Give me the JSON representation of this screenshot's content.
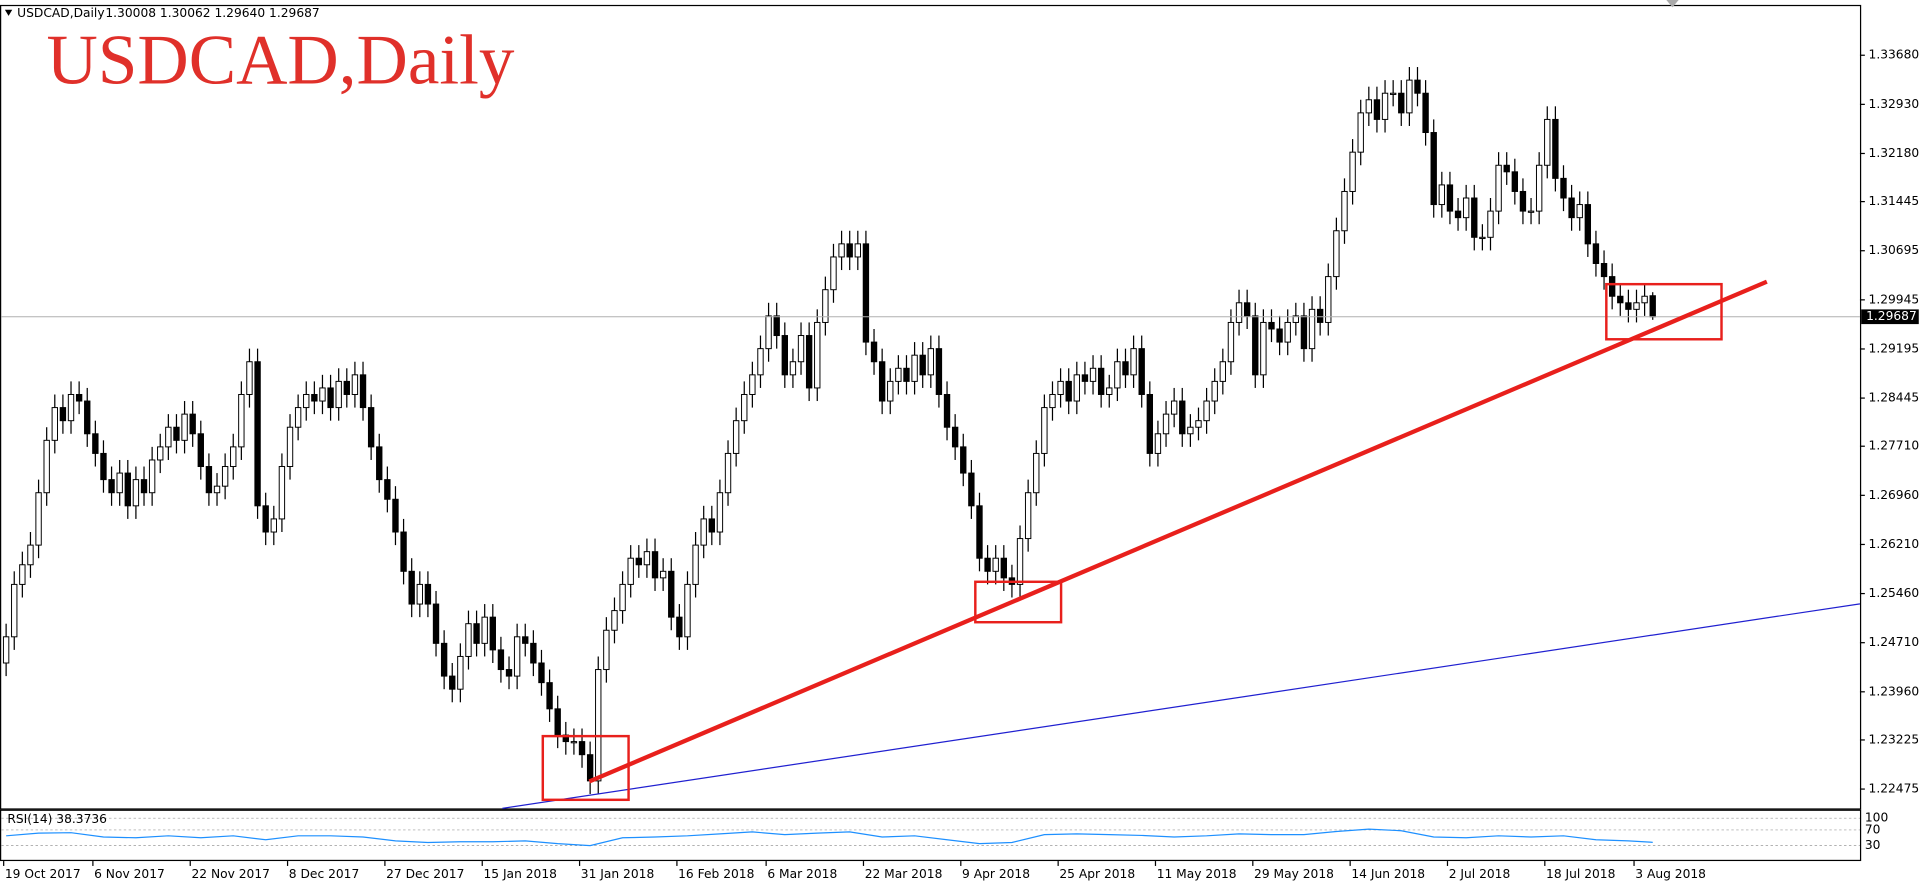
{
  "chart_data": {
    "type": "candlestick",
    "title": "USDCAD,Daily",
    "header_prices": "1.30008 1.30062 1.29640 1.29687",
    "up_color": "#ffffff",
    "down_color": "#000000",
    "ylim": [
      1.2218,
      1.3443
    ],
    "yticks": [
      {
        "value": 1.3368,
        "label": "1.33680"
      },
      {
        "value": 1.3293,
        "label": "1.32930"
      },
      {
        "value": 1.3218,
        "label": "1.32180"
      },
      1.31445,
      1.30695,
      1.29945,
      1.29195,
      1.28445,
      {
        "value": 1.2771,
        "label": "1.27710"
      },
      {
        "value": 1.2696,
        "label": "1.26960"
      },
      {
        "value": 1.2621,
        "label": "1.26210"
      },
      {
        "value": 1.2546,
        "label": "1.25460"
      },
      {
        "value": 1.2471,
        "label": "1.24710"
      },
      {
        "value": 1.2396,
        "label": "1.23960"
      },
      1.23225,
      1.22475
    ],
    "xticks": [
      {
        "value": 0,
        "label": "19 Oct 2017"
      },
      {
        "value": 11,
        "label": "6 Nov 2017"
      },
      {
        "value": 23,
        "label": "22 Nov 2017"
      },
      {
        "value": 35,
        "label": "8 Dec 2017"
      },
      {
        "value": 47,
        "label": "27 Dec 2017"
      },
      {
        "value": 59,
        "label": "15 Jan 2018"
      },
      {
        "value": 71,
        "label": "31 Jan 2018"
      },
      {
        "value": 83,
        "label": "16 Feb 2018"
      },
      {
        "value": 94,
        "label": "6 Mar 2018"
      },
      {
        "value": 106,
        "label": "22 Mar 2018"
      },
      {
        "value": 118,
        "label": "9 Apr 2018"
      },
      {
        "value": 130,
        "label": "25 Apr 2018"
      },
      {
        "value": 142,
        "label": "11 May 2018"
      },
      {
        "value": 154,
        "label": "29 May 2018"
      },
      {
        "value": 166,
        "label": "14 Jun 2018"
      },
      {
        "value": 178,
        "label": "2 Jul 2018"
      },
      {
        "value": 190,
        "label": "18 Jul 2018"
      },
      {
        "value": 201,
        "label": "3 Aug 2018"
      }
    ],
    "last_price": {
      "value": 1.29687,
      "label": "1.29687"
    },
    "open": [
      1.244,
      1.248,
      1.256,
      1.259,
      1.262,
      1.27,
      1.278,
      1.283,
      1.281,
      1.285,
      1.284,
      1.279,
      1.276,
      1.272,
      1.27,
      1.273,
      1.268,
      1.272,
      1.27,
      1.275,
      1.277,
      1.28,
      1.278,
      1.282,
      1.279,
      1.274,
      1.27,
      1.271,
      1.274,
      1.277,
      1.285,
      1.29,
      1.268,
      1.264,
      1.266,
      1.274,
      1.28,
      1.283,
      1.285,
      1.284,
      1.286,
      1.283,
      1.287,
      1.285,
      1.288,
      1.283,
      1.277,
      1.272,
      1.269,
      1.264,
      1.258,
      1.253,
      1.256,
      1.253,
      1.247,
      1.242,
      1.24,
      1.245,
      1.25,
      1.247,
      1.251,
      1.246,
      1.243,
      1.242,
      1.248,
      1.247,
      1.244,
      1.241,
      1.237,
      1.233,
      1.232,
      1.232,
      1.23,
      1.226,
      1.243,
      1.249,
      1.252,
      1.256,
      1.26,
      1.259,
      1.261,
      1.257,
      1.258,
      1.251,
      1.248,
      1.256,
      1.262,
      1.266,
      1.264,
      1.27,
      1.276,
      1.281,
      1.285,
      1.288,
      1.292,
      1.297,
      1.294,
      1.288,
      1.29,
      1.294,
      1.286,
      1.296,
      1.301,
      1.306,
      1.308,
      1.306,
      1.308,
      1.293,
      1.29,
      1.284,
      1.287,
      1.289,
      1.287,
      1.291,
      1.288,
      1.292,
      1.285,
      1.28,
      1.277,
      1.273,
      1.268,
      1.26,
      1.258,
      1.26,
      1.257,
      1.256,
      1.263,
      1.27,
      1.276,
      1.283,
      1.285,
      1.287,
      1.284,
      1.288,
      1.287,
      1.289,
      1.285,
      1.286,
      1.29,
      1.288,
      1.292,
      1.285,
      1.276,
      1.279,
      1.282,
      1.284,
      1.279,
      1.28,
      1.281,
      1.284,
      1.287,
      1.29,
      1.296,
      1.299,
      1.297,
      1.288,
      1.296,
      1.295,
      1.293,
      1.296,
      1.297,
      1.292,
      1.298,
      1.296,
      1.303,
      1.31,
      1.316,
      1.322,
      1.328,
      1.33,
      1.327,
      1.331,
      1.331,
      1.328,
      1.333,
      1.331,
      1.325,
      1.314,
      1.317,
      1.313,
      1.312,
      1.315,
      1.309,
      1.309,
      1.313,
      1.32,
      1.319,
      1.316,
      1.313,
      1.313,
      1.32,
      1.327,
      1.318,
      1.315,
      1.312,
      1.314,
      1.308,
      1.305,
      1.303,
      1.3,
      1.299,
      1.298,
      1.299,
      1.30008
    ],
    "high": [
      1.25,
      1.258,
      1.261,
      1.264,
      1.272,
      1.28,
      1.285,
      1.285,
      1.287,
      1.287,
      1.286,
      1.281,
      1.278,
      1.274,
      1.275,
      1.275,
      1.274,
      1.274,
      1.277,
      1.279,
      1.282,
      1.282,
      1.284,
      1.284,
      1.281,
      1.276,
      1.273,
      1.276,
      1.279,
      1.287,
      1.292,
      1.292,
      1.27,
      1.268,
      1.276,
      1.282,
      1.285,
      1.287,
      1.287,
      1.288,
      1.288,
      1.289,
      1.289,
      1.29,
      1.29,
      1.285,
      1.279,
      1.274,
      1.271,
      1.266,
      1.26,
      1.258,
      1.258,
      1.255,
      1.249,
      1.244,
      1.247,
      1.252,
      1.252,
      1.253,
      1.253,
      1.248,
      1.245,
      1.25,
      1.25,
      1.249,
      1.246,
      1.243,
      1.239,
      1.235,
      1.234,
      1.234,
      1.232,
      1.245,
      1.251,
      1.254,
      1.258,
      1.262,
      1.262,
      1.263,
      1.263,
      1.26,
      1.26,
      1.253,
      1.258,
      1.264,
      1.268,
      1.268,
      1.272,
      1.278,
      1.283,
      1.287,
      1.29,
      1.294,
      1.299,
      1.299,
      1.296,
      1.292,
      1.296,
      1.296,
      1.298,
      1.303,
      1.308,
      1.31,
      1.31,
      1.31,
      1.31,
      1.295,
      1.292,
      1.289,
      1.291,
      1.291,
      1.293,
      1.293,
      1.294,
      1.294,
      1.287,
      1.282,
      1.279,
      1.275,
      1.27,
      1.262,
      1.262,
      1.262,
      1.259,
      1.265,
      1.272,
      1.278,
      1.285,
      1.287,
      1.289,
      1.289,
      1.29,
      1.29,
      1.291,
      1.291,
      1.288,
      1.292,
      1.292,
      1.294,
      1.294,
      1.287,
      1.281,
      1.284,
      1.286,
      1.286,
      1.282,
      1.283,
      1.286,
      1.289,
      1.292,
      1.298,
      1.301,
      1.301,
      1.299,
      1.298,
      1.298,
      1.297,
      1.298,
      1.299,
      1.299,
      1.3,
      1.3,
      1.305,
      1.312,
      1.318,
      1.324,
      1.33,
      1.332,
      1.332,
      1.333,
      1.333,
      1.333,
      1.335,
      1.335,
      1.333,
      1.327,
      1.319,
      1.319,
      1.315,
      1.317,
      1.317,
      1.311,
      1.315,
      1.322,
      1.322,
      1.321,
      1.318,
      1.315,
      1.322,
      1.329,
      1.329,
      1.32,
      1.317,
      1.316,
      1.316,
      1.31,
      1.307,
      1.305,
      1.302,
      1.301,
      1.301,
      1.302,
      1.30062
    ],
    "low": [
      1.242,
      1.246,
      1.254,
      1.257,
      1.26,
      1.268,
      1.276,
      1.279,
      1.279,
      1.282,
      1.277,
      1.274,
      1.27,
      1.268,
      1.268,
      1.266,
      1.266,
      1.268,
      1.268,
      1.273,
      1.275,
      1.276,
      1.276,
      1.277,
      1.272,
      1.268,
      1.268,
      1.269,
      1.272,
      1.275,
      1.283,
      1.266,
      1.262,
      1.262,
      1.264,
      1.272,
      1.278,
      1.281,
      1.282,
      1.282,
      1.281,
      1.281,
      1.283,
      1.283,
      1.281,
      1.275,
      1.27,
      1.267,
      1.262,
      1.256,
      1.251,
      1.251,
      1.251,
      1.245,
      1.24,
      1.238,
      1.238,
      1.243,
      1.245,
      1.245,
      1.244,
      1.241,
      1.24,
      1.24,
      1.245,
      1.242,
      1.239,
      1.235,
      1.231,
      1.23,
      1.23,
      1.228,
      1.224,
      1.224,
      1.241,
      1.247,
      1.25,
      1.254,
      1.257,
      1.257,
      1.255,
      1.255,
      1.249,
      1.246,
      1.246,
      1.254,
      1.26,
      1.262,
      1.262,
      1.268,
      1.274,
      1.279,
      1.283,
      1.286,
      1.29,
      1.292,
      1.286,
      1.286,
      1.288,
      1.284,
      1.284,
      1.294,
      1.299,
      1.304,
      1.304,
      1.304,
      1.291,
      1.288,
      1.282,
      1.282,
      1.285,
      1.285,
      1.285,
      1.286,
      1.286,
      1.283,
      1.278,
      1.275,
      1.271,
      1.266,
      1.258,
      1.256,
      1.256,
      1.255,
      1.254,
      1.254,
      1.261,
      1.268,
      1.274,
      1.281,
      1.283,
      1.282,
      1.282,
      1.285,
      1.285,
      1.283,
      1.283,
      1.284,
      1.286,
      1.286,
      1.283,
      1.274,
      1.274,
      1.277,
      1.28,
      1.277,
      1.277,
      1.278,
      1.279,
      1.282,
      1.285,
      1.288,
      1.294,
      1.295,
      1.286,
      1.286,
      1.293,
      1.291,
      1.291,
      1.294,
      1.29,
      1.29,
      1.294,
      1.294,
      1.301,
      1.308,
      1.314,
      1.32,
      1.326,
      1.325,
      1.325,
      1.329,
      1.326,
      1.326,
      1.329,
      1.323,
      1.312,
      1.312,
      1.311,
      1.31,
      1.31,
      1.307,
      1.307,
      1.307,
      1.311,
      1.317,
      1.314,
      1.311,
      1.311,
      1.311,
      1.318,
      1.316,
      1.313,
      1.31,
      1.31,
      1.306,
      1.303,
      1.301,
      1.298,
      1.297,
      1.296,
      1.296,
      1.297,
      1.2964
    ],
    "close": [
      1.248,
      1.256,
      1.259,
      1.262,
      1.27,
      1.278,
      1.283,
      1.281,
      1.285,
      1.284,
      1.279,
      1.276,
      1.272,
      1.27,
      1.273,
      1.268,
      1.272,
      1.27,
      1.275,
      1.277,
      1.28,
      1.278,
      1.282,
      1.279,
      1.274,
      1.27,
      1.271,
      1.274,
      1.277,
      1.285,
      1.29,
      1.268,
      1.264,
      1.266,
      1.274,
      1.28,
      1.283,
      1.285,
      1.284,
      1.286,
      1.283,
      1.287,
      1.285,
      1.288,
      1.283,
      1.277,
      1.272,
      1.269,
      1.264,
      1.258,
      1.253,
      1.256,
      1.253,
      1.247,
      1.242,
      1.24,
      1.245,
      1.25,
      1.247,
      1.251,
      1.246,
      1.243,
      1.242,
      1.248,
      1.247,
      1.244,
      1.241,
      1.237,
      1.233,
      1.232,
      1.232,
      1.23,
      1.226,
      1.243,
      1.249,
      1.252,
      1.256,
      1.26,
      1.259,
      1.261,
      1.257,
      1.258,
      1.251,
      1.248,
      1.256,
      1.262,
      1.266,
      1.264,
      1.27,
      1.276,
      1.281,
      1.285,
      1.288,
      1.292,
      1.297,
      1.294,
      1.288,
      1.29,
      1.294,
      1.286,
      1.296,
      1.301,
      1.306,
      1.308,
      1.306,
      1.308,
      1.293,
      1.29,
      1.284,
      1.287,
      1.289,
      1.287,
      1.291,
      1.288,
      1.292,
      1.285,
      1.28,
      1.277,
      1.273,
      1.268,
      1.26,
      1.258,
      1.26,
      1.257,
      1.256,
      1.263,
      1.27,
      1.276,
      1.283,
      1.285,
      1.287,
      1.284,
      1.288,
      1.287,
      1.289,
      1.285,
      1.286,
      1.29,
      1.288,
      1.292,
      1.285,
      1.276,
      1.279,
      1.282,
      1.284,
      1.279,
      1.28,
      1.281,
      1.284,
      1.287,
      1.29,
      1.296,
      1.299,
      1.297,
      1.288,
      1.296,
      1.295,
      1.293,
      1.296,
      1.297,
      1.292,
      1.298,
      1.296,
      1.303,
      1.31,
      1.316,
      1.322,
      1.328,
      1.33,
      1.327,
      1.331,
      1.331,
      1.328,
      1.333,
      1.331,
      1.325,
      1.314,
      1.317,
      1.313,
      1.312,
      1.315,
      1.309,
      1.309,
      1.313,
      1.32,
      1.319,
      1.316,
      1.313,
      1.313,
      1.32,
      1.327,
      1.318,
      1.315,
      1.312,
      1.314,
      1.308,
      1.305,
      1.303,
      1.3,
      1.299,
      1.298,
      1.299,
      1.3,
      1.29687
    ],
    "indicator": {
      "type": "line",
      "title": "RSI(14) 38.3736",
      "color": "#1e90ff",
      "ylim": [
        0,
        100
      ],
      "yticks": [
        30,
        70,
        100
      ],
      "x": [
        0,
        4,
        8,
        12,
        16,
        20,
        24,
        28,
        32,
        36,
        40,
        44,
        48,
        52,
        56,
        60,
        64,
        68,
        72,
        76,
        80,
        84,
        88,
        92,
        96,
        100,
        104,
        108,
        112,
        116,
        120,
        124,
        128,
        132,
        136,
        140,
        144,
        148,
        152,
        156,
        160,
        164,
        168,
        172,
        176,
        180,
        184,
        188,
        192,
        196,
        200,
        203
      ],
      "values": [
        55,
        62,
        63,
        52,
        50,
        55,
        50,
        55,
        45,
        55,
        55,
        52,
        42,
        38,
        40,
        40,
        42,
        35,
        30,
        50,
        52,
        55,
        60,
        65,
        58,
        62,
        65,
        52,
        55,
        45,
        35,
        38,
        58,
        60,
        58,
        56,
        52,
        55,
        60,
        58,
        58,
        66,
        72,
        68,
        52,
        50,
        55,
        52,
        55,
        45,
        42,
        38.3736
      ]
    }
  }
}
